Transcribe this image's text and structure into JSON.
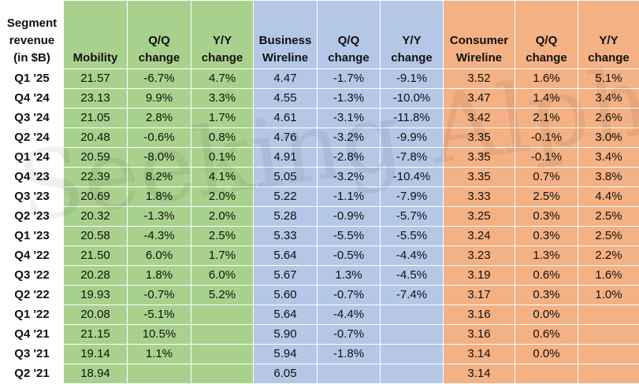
{
  "headers": {
    "label": "Segment revenue (in $B)",
    "mobility": "Mobility",
    "mob_qq": "Q/Q change",
    "mob_yy": "Y/Y change",
    "business": "Business Wireline",
    "bus_qq": "Q/Q change",
    "bus_yy": "Y/Y change",
    "consumer": "Consumer Wireline",
    "con_qq": "Q/Q change",
    "con_yy": "Y/Y change"
  },
  "rows": [
    {
      "q": "Q1 '25",
      "mob": "21.57",
      "mob_qq": "-6.7%",
      "mob_yy": "4.7%",
      "bus": "4.47",
      "bus_qq": "-1.7%",
      "bus_yy": "-9.1%",
      "con": "3.52",
      "con_qq": "1.6%",
      "con_yy": "5.1%"
    },
    {
      "q": "Q4 '24",
      "mob": "23.13",
      "mob_qq": "9.9%",
      "mob_yy": "3.3%",
      "bus": "4.55",
      "bus_qq": "-1.3%",
      "bus_yy": "-10.0%",
      "con": "3.47",
      "con_qq": "1.4%",
      "con_yy": "3.4%"
    },
    {
      "q": "Q3 '24",
      "mob": "21.05",
      "mob_qq": "2.8%",
      "mob_yy": "1.7%",
      "bus": "4.61",
      "bus_qq": "-3.1%",
      "bus_yy": "-11.8%",
      "con": "3.42",
      "con_qq": "2.1%",
      "con_yy": "2.6%"
    },
    {
      "q": "Q2 '24",
      "mob": "20.48",
      "mob_qq": "-0.6%",
      "mob_yy": "0.8%",
      "bus": "4.76",
      "bus_qq": "-3.2%",
      "bus_yy": "-9.9%",
      "con": "3.35",
      "con_qq": "-0.1%",
      "con_yy": "3.0%"
    },
    {
      "q": "Q1 '24",
      "mob": "20.59",
      "mob_qq": "-8.0%",
      "mob_yy": "0.1%",
      "bus": "4.91",
      "bus_qq": "-2.8%",
      "bus_yy": "-7.8%",
      "con": "3.35",
      "con_qq": "-0.1%",
      "con_yy": "3.4%"
    },
    {
      "q": "Q4 '23",
      "mob": "22.39",
      "mob_qq": "8.2%",
      "mob_yy": "4.1%",
      "bus": "5.05",
      "bus_qq": "-3.2%",
      "bus_yy": "-10.4%",
      "con": "3.35",
      "con_qq": "0.7%",
      "con_yy": "3.8%"
    },
    {
      "q": "Q3 '23",
      "mob": "20.69",
      "mob_qq": "1.8%",
      "mob_yy": "2.0%",
      "bus": "5.22",
      "bus_qq": "-1.1%",
      "bus_yy": "-7.9%",
      "con": "3.33",
      "con_qq": "2.5%",
      "con_yy": "4.4%"
    },
    {
      "q": "Q2 '23",
      "mob": "20.32",
      "mob_qq": "-1.3%",
      "mob_yy": "2.0%",
      "bus": "5.28",
      "bus_qq": "-0.9%",
      "bus_yy": "-5.7%",
      "con": "3.25",
      "con_qq": "0.3%",
      "con_yy": "2.5%"
    },
    {
      "q": "Q1 '23",
      "mob": "20.58",
      "mob_qq": "-4.3%",
      "mob_yy": "2.5%",
      "bus": "5.33",
      "bus_qq": "-5.5%",
      "bus_yy": "-5.5%",
      "con": "3.24",
      "con_qq": "0.3%",
      "con_yy": "2.5%"
    },
    {
      "q": "Q4 '22",
      "mob": "21.50",
      "mob_qq": "6.0%",
      "mob_yy": "1.7%",
      "bus": "5.64",
      "bus_qq": "-0.5%",
      "bus_yy": "-4.4%",
      "con": "3.23",
      "con_qq": "1.3%",
      "con_yy": "2.2%"
    },
    {
      "q": "Q3 '22",
      "mob": "20.28",
      "mob_qq": "1.8%",
      "mob_yy": "6.0%",
      "bus": "5.67",
      "bus_qq": "1.3%",
      "bus_yy": "-4.5%",
      "con": "3.19",
      "con_qq": "0.6%",
      "con_yy": "1.6%"
    },
    {
      "q": "Q2 '22",
      "mob": "19.93",
      "mob_qq": "-0.7%",
      "mob_yy": "5.2%",
      "bus": "5.60",
      "bus_qq": "-0.7%",
      "bus_yy": "-7.4%",
      "con": "3.17",
      "con_qq": "0.3%",
      "con_yy": "1.0%"
    },
    {
      "q": "Q1 '22",
      "mob": "20.08",
      "mob_qq": "-5.1%",
      "mob_yy": "",
      "bus": "5.64",
      "bus_qq": "-4.4%",
      "bus_yy": "",
      "con": "3.16",
      "con_qq": "0.0%",
      "con_yy": ""
    },
    {
      "q": "Q4 '21",
      "mob": "21.15",
      "mob_qq": "10.5%",
      "mob_yy": "",
      "bus": "5.90",
      "bus_qq": "-0.7%",
      "bus_yy": "",
      "con": "3.16",
      "con_qq": "0.6%",
      "con_yy": ""
    },
    {
      "q": "Q3 '21",
      "mob": "19.14",
      "mob_qq": "1.1%",
      "mob_yy": "",
      "bus": "5.94",
      "bus_qq": "-1.8%",
      "bus_yy": "",
      "con": "3.14",
      "con_qq": "0.0%",
      "con_yy": ""
    },
    {
      "q": "Q2 '21",
      "mob": "18.94",
      "mob_qq": "",
      "mob_yy": "",
      "bus": "6.05",
      "bus_qq": "",
      "bus_yy": "",
      "con": "3.14",
      "con_qq": "",
      "con_yy": ""
    }
  ],
  "colors": {
    "mobility": "#a9d18e",
    "business": "#b4c7e7",
    "consumer": "#f4b183"
  },
  "watermark": "Seeking Alpha"
}
